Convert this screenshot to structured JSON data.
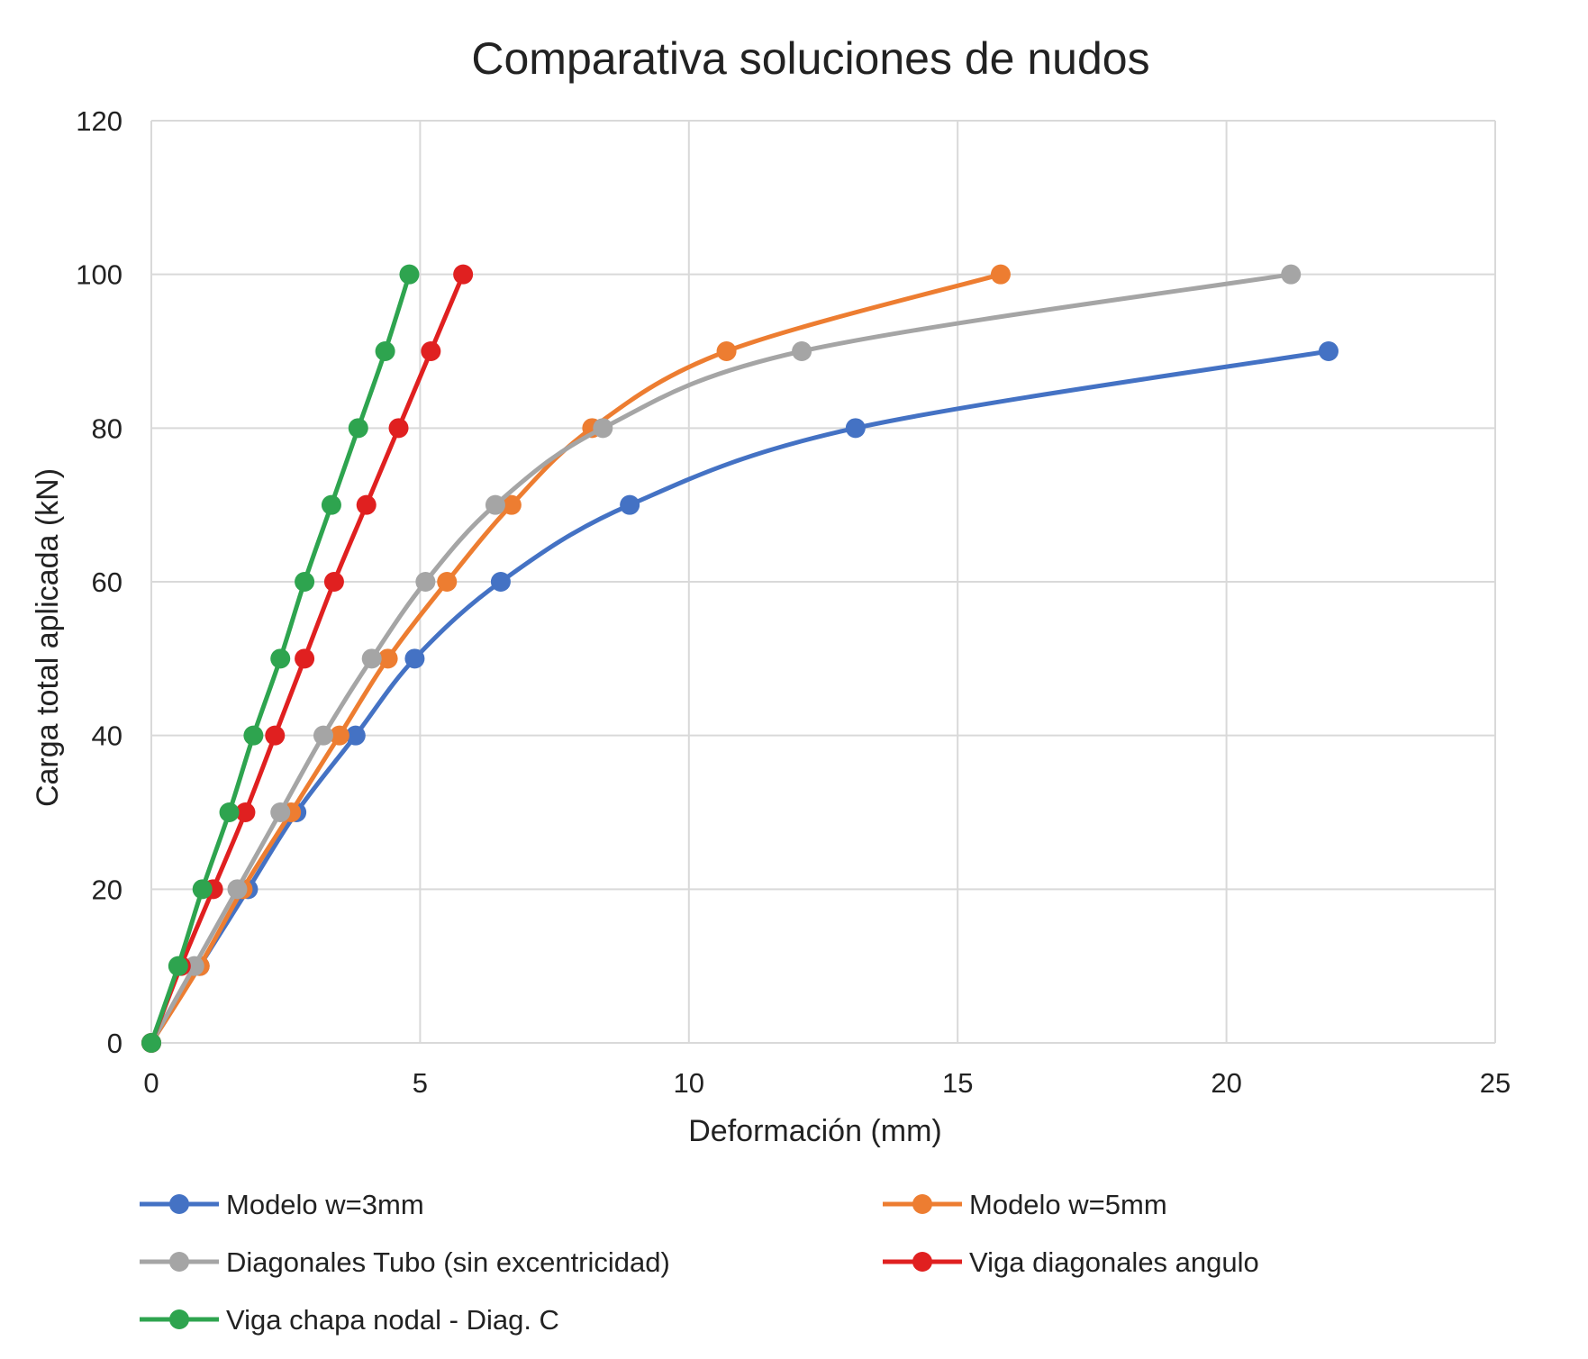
{
  "chart_data": {
    "type": "line",
    "title": "Comparativa soluciones de nudos",
    "xlabel": "Deformación (mm)",
    "ylabel": "Carga total aplicada (kN)",
    "xlim": [
      0,
      25
    ],
    "ylim": [
      0,
      120
    ],
    "xticks": [
      0,
      5,
      10,
      15,
      20,
      25
    ],
    "yticks": [
      0,
      20,
      40,
      60,
      80,
      100,
      120
    ],
    "grid": true,
    "legend_position": "bottom",
    "smooth": true,
    "series": [
      {
        "name": "Modelo w=3mm",
        "color": "#4472c4",
        "x": [
          0,
          0.9,
          1.8,
          2.7,
          3.8,
          4.9,
          6.5,
          8.9,
          13.1,
          21.9
        ],
        "y": [
          0,
          10,
          20,
          30,
          40,
          50,
          60,
          70,
          80,
          90
        ]
      },
      {
        "name": "Modelo w=5mm",
        "color": "#ed7d31",
        "x": [
          0,
          0.9,
          1.7,
          2.6,
          3.5,
          4.4,
          5.5,
          6.7,
          8.2,
          10.7,
          15.8
        ],
        "y": [
          0,
          10,
          20,
          30,
          40,
          50,
          60,
          70,
          80,
          90,
          100
        ]
      },
      {
        "name": "Diagonales Tubo (sin excentricidad)",
        "color": "#a5a5a5",
        "x": [
          0,
          0.8,
          1.6,
          2.4,
          3.2,
          4.1,
          5.1,
          6.4,
          8.4,
          12.1,
          21.2
        ],
        "y": [
          0,
          10,
          20,
          30,
          40,
          50,
          60,
          70,
          80,
          90,
          100
        ]
      },
      {
        "name": "Viga diagonales angulo",
        "color": "#e02020",
        "x": [
          0,
          0.55,
          1.15,
          1.75,
          2.3,
          2.85,
          3.4,
          4.0,
          4.6,
          5.2,
          5.8
        ],
        "y": [
          0,
          10,
          20,
          30,
          40,
          50,
          60,
          70,
          80,
          90,
          100
        ]
      },
      {
        "name": "Viga chapa nodal - Diag. C",
        "color": "#2ea44f",
        "x": [
          0,
          0.5,
          0.95,
          1.45,
          1.9,
          2.4,
          2.85,
          3.35,
          3.85,
          4.35,
          4.8
        ],
        "y": [
          0,
          10,
          20,
          30,
          40,
          50,
          60,
          70,
          80,
          90,
          100
        ]
      }
    ]
  }
}
